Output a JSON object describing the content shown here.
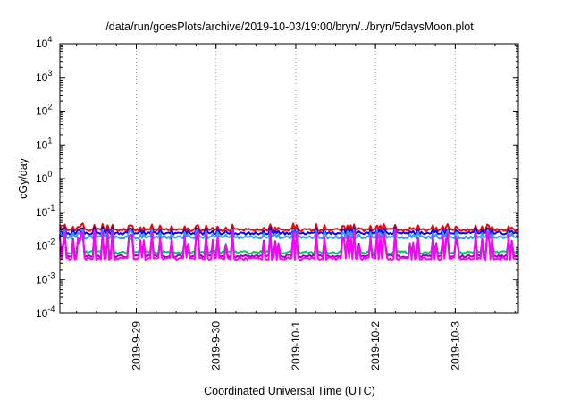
{
  "chart_data": {
    "type": "line",
    "title": "/data/run/goesPlots/archive/2019-10-03/19:00/bryn/../bryn/5daysMoon.plot",
    "xlabel": "Coordinated Universal Time (UTC)",
    "ylabel": "cGy/day",
    "y_scale": "log",
    "ylim": [
      0.0001,
      10000
    ],
    "x_start": "2019-09-28T01:00",
    "x_end": "2019-10-03T19:00",
    "x_ticks": [
      "2019-9-29",
      "2019-9-30",
      "2019-10-1",
      "2019-10-2",
      "2019-10-3"
    ],
    "y_ticks": [
      {
        "base": "10",
        "exp": "-4",
        "value": 0.0001
      },
      {
        "base": "10",
        "exp": "-3",
        "value": 0.001
      },
      {
        "base": "10",
        "exp": "-2",
        "value": 0.01
      },
      {
        "base": "10",
        "exp": "-1",
        "value": 0.1
      },
      {
        "base": "10",
        "exp": "0",
        "value": 1
      },
      {
        "base": "10",
        "exp": "1",
        "value": 10
      },
      {
        "base": "10",
        "exp": "2",
        "value": 100
      },
      {
        "base": "10",
        "exp": "3",
        "value": 1000
      },
      {
        "base": "10",
        "exp": "4",
        "value": 10000
      }
    ],
    "grid": {
      "x": true,
      "y": false,
      "style": "dotted"
    },
    "legend": "none",
    "series": [
      {
        "color": "#ff0000",
        "baseline": 0.03,
        "spike_peak": 0.045
      },
      {
        "color": "#0000ff",
        "baseline": 0.024,
        "spike_peak": 0.035
      },
      {
        "color": "#3399ff",
        "baseline": 0.018,
        "spike_peak": 0.03
      },
      {
        "color": "#00cc66",
        "baseline": 0.0065,
        "spike_peak": 0.02
      },
      {
        "color": "#a000c0",
        "baseline": 0.005,
        "spike_peak": 0.025
      },
      {
        "color": "#ff00ff",
        "baseline": 0.0042,
        "spike_peak": 0.028
      }
    ]
  }
}
